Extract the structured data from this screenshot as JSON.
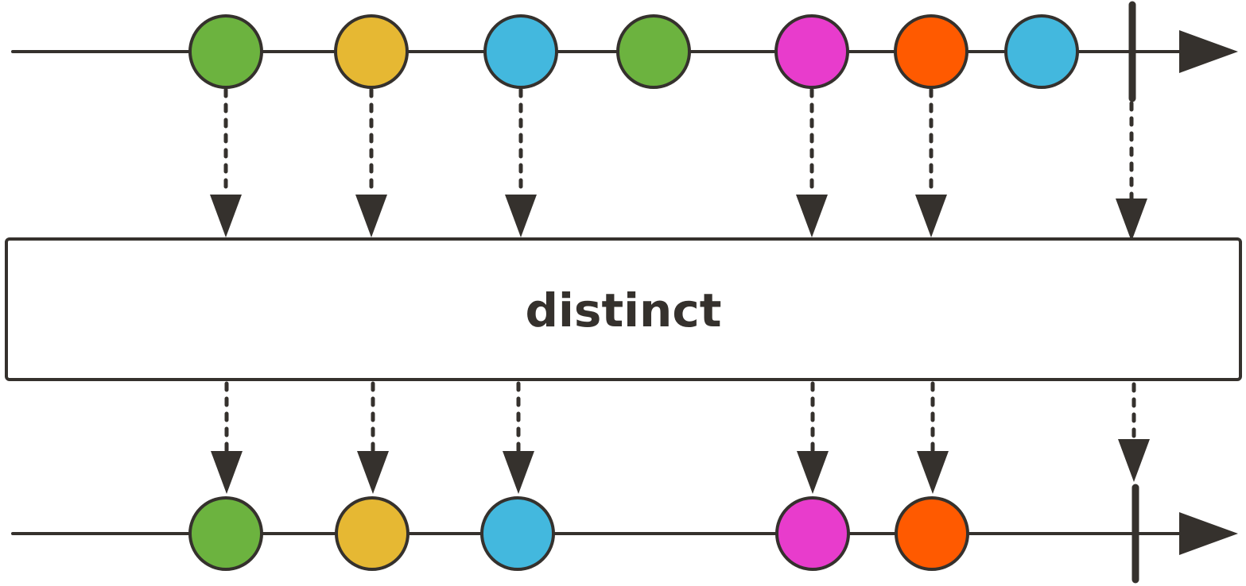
{
  "operator": {
    "label": "distinct"
  },
  "colors": {
    "stroke": "#35312d",
    "box_fill": "#ffffff",
    "green": "#6cb33f",
    "yellow": "#e6b833",
    "blue": "#43b8de",
    "magenta": "#e83ccc",
    "orange": "#ff5a00"
  },
  "input": {
    "items": [
      "green",
      "yellow",
      "blue",
      "green",
      "magenta",
      "orange",
      "blue"
    ],
    "completes": true
  },
  "output": {
    "items": [
      "green",
      "yellow",
      "blue",
      "magenta",
      "orange"
    ],
    "completes": true
  }
}
